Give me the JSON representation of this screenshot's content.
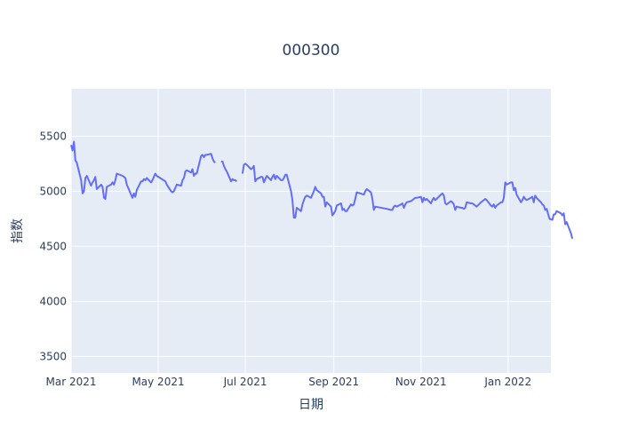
{
  "chart_data": {
    "type": "line",
    "title": "000300",
    "xlabel": "日期",
    "ylabel": "指数",
    "xlim": [
      "2021-03-01",
      "2022-01-31"
    ],
    "ylim": [
      3350,
      5930
    ],
    "x_ticks": [
      {
        "date": "2021-03-01",
        "label": "Mar 2021"
      },
      {
        "date": "2021-05-01",
        "label": "May 2021"
      },
      {
        "date": "2021-07-01",
        "label": "Jul 2021"
      },
      {
        "date": "2021-09-01",
        "label": "Sep 2021"
      },
      {
        "date": "2021-11-01",
        "label": "Nov 2021"
      },
      {
        "date": "2022-01-01",
        "label": "Jan 2022"
      }
    ],
    "y_ticks": [
      3500,
      4000,
      4500,
      5000,
      5500
    ],
    "grid": true,
    "line_color": "#636efa",
    "plot_background": "#e5ecf6",
    "series": [
      {
        "segments": [
          [
            [
              "2021-03-01",
              5420
            ],
            [
              "2021-03-02",
              5370
            ],
            [
              "2021-03-03",
              5450
            ],
            [
              "2021-03-04",
              5280
            ],
            [
              "2021-03-05",
              5260
            ],
            [
              "2021-03-08",
              5100
            ],
            [
              "2021-03-09",
              4980
            ],
            [
              "2021-03-10",
              5000
            ],
            [
              "2021-03-11",
              5120
            ],
            [
              "2021-03-12",
              5140
            ],
            [
              "2021-03-15",
              5050
            ],
            [
              "2021-03-16",
              5080
            ],
            [
              "2021-03-17",
              5100
            ],
            [
              "2021-03-18",
              5130
            ],
            [
              "2021-03-19",
              5020
            ],
            [
              "2021-03-22",
              5060
            ],
            [
              "2021-03-23",
              5040
            ],
            [
              "2021-03-24",
              4940
            ],
            [
              "2021-03-25",
              4930
            ],
            [
              "2021-03-26",
              5040
            ],
            [
              "2021-03-29",
              5060
            ],
            [
              "2021-03-30",
              5080
            ],
            [
              "2021-03-31",
              5060
            ],
            [
              "2021-04-01",
              5100
            ],
            [
              "2021-04-02",
              5160
            ],
            [
              "2021-04-06",
              5140
            ],
            [
              "2021-04-07",
              5130
            ],
            [
              "2021-04-08",
              5120
            ],
            [
              "2021-04-09",
              5060
            ],
            [
              "2021-04-12",
              4970
            ],
            [
              "2021-04-13",
              4940
            ],
            [
              "2021-04-14",
              4980
            ],
            [
              "2021-04-15",
              4950
            ],
            [
              "2021-04-16",
              5010
            ],
            [
              "2021-04-19",
              5090
            ],
            [
              "2021-04-20",
              5090
            ],
            [
              "2021-04-21",
              5110
            ],
            [
              "2021-04-22",
              5100
            ],
            [
              "2021-04-23",
              5120
            ],
            [
              "2021-04-26",
              5080
            ],
            [
              "2021-04-27",
              5100
            ],
            [
              "2021-04-28",
              5130
            ],
            [
              "2021-04-29",
              5160
            ],
            [
              "2021-04-30",
              5140
            ],
            [
              "2021-05-06",
              5090
            ],
            [
              "2021-05-07",
              5060
            ],
            [
              "2021-05-10",
              5000
            ],
            [
              "2021-05-11",
              4990
            ],
            [
              "2021-05-12",
              5000
            ],
            [
              "2021-05-13",
              5030
            ],
            [
              "2021-05-14",
              5060
            ],
            [
              "2021-05-17",
              5050
            ],
            [
              "2021-05-18",
              5100
            ],
            [
              "2021-05-19",
              5120
            ],
            [
              "2021-05-20",
              5180
            ],
            [
              "2021-05-21",
              5190
            ],
            [
              "2021-05-24",
              5170
            ],
            [
              "2021-05-25",
              5200
            ],
            [
              "2021-05-26",
              5140
            ],
            [
              "2021-05-27",
              5160
            ],
            [
              "2021-05-28",
              5160
            ],
            [
              "2021-05-31",
              5320
            ],
            [
              "2021-06-01",
              5330
            ],
            [
              "2021-06-02",
              5310
            ],
            [
              "2021-06-03",
              5330
            ],
            [
              "2021-06-04",
              5330
            ],
            [
              "2021-06-07",
              5340
            ],
            [
              "2021-06-08",
              5300
            ],
            [
              "2021-06-09",
              5270
            ],
            [
              "2021-06-10",
              5260
            ]
          ],
          [
            [
              "2021-06-14",
              5270
            ],
            [
              "2021-06-15",
              5270
            ],
            [
              "2021-06-16",
              5230
            ],
            [
              "2021-06-17",
              5200
            ],
            [
              "2021-06-18",
              5180
            ],
            [
              "2021-06-21",
              5090
            ],
            [
              "2021-06-22",
              5110
            ],
            [
              "2021-06-23",
              5100
            ],
            [
              "2021-06-24",
              5100
            ],
            [
              "2021-06-25",
              5090
            ]
          ],
          [
            [
              "2021-06-29",
              5160
            ],
            [
              "2021-06-30",
              5240
            ],
            [
              "2021-07-01",
              5250
            ],
            [
              "2021-07-02",
              5240
            ],
            [
              "2021-07-05",
              5200
            ],
            [
              "2021-07-06",
              5210
            ],
            [
              "2021-07-07",
              5230
            ],
            [
              "2021-07-08",
              5090
            ],
            [
              "2021-07-09",
              5110
            ],
            [
              "2021-07-12",
              5130
            ],
            [
              "2021-07-13",
              5130
            ],
            [
              "2021-07-14",
              5080
            ],
            [
              "2021-07-15",
              5110
            ],
            [
              "2021-07-16",
              5140
            ],
            [
              "2021-07-19",
              5100
            ],
            [
              "2021-07-20",
              5130
            ],
            [
              "2021-07-21",
              5150
            ],
            [
              "2021-07-22",
              5110
            ],
            [
              "2021-07-23",
              5140
            ],
            [
              "2021-07-26",
              5100
            ],
            [
              "2021-07-27",
              5100
            ],
            [
              "2021-07-28",
              5120
            ],
            [
              "2021-07-29",
              5150
            ],
            [
              "2021-07-30",
              5150
            ],
            [
              "2021-08-02",
              5000
            ],
            [
              "2021-08-03",
              4920
            ],
            [
              "2021-08-04",
              4760
            ],
            [
              "2021-08-05",
              4760
            ],
            [
              "2021-08-06",
              4850
            ],
            [
              "2021-08-09",
              4820
            ],
            [
              "2021-08-10",
              4880
            ],
            [
              "2021-08-11",
              4920
            ],
            [
              "2021-08-12",
              4950
            ],
            [
              "2021-08-13",
              4960
            ],
            [
              "2021-08-16",
              4940
            ],
            [
              "2021-08-17",
              4970
            ],
            [
              "2021-08-18",
              5000
            ],
            [
              "2021-08-19",
              5040
            ],
            [
              "2021-08-20",
              5010
            ],
            [
              "2021-08-23",
              4980
            ],
            [
              "2021-08-24",
              4950
            ],
            [
              "2021-08-25",
              4950
            ],
            [
              "2021-08-26",
              4860
            ],
            [
              "2021-08-27",
              4900
            ],
            [
              "2021-08-30",
              4860
            ],
            [
              "2021-08-31",
              4780
            ],
            [
              "2021-09-01",
              4800
            ],
            [
              "2021-09-02",
              4820
            ],
            [
              "2021-09-03",
              4870
            ],
            [
              "2021-09-06",
              4890
            ],
            [
              "2021-09-07",
              4830
            ],
            [
              "2021-09-08",
              4840
            ],
            [
              "2021-09-09",
              4820
            ],
            [
              "2021-09-10",
              4820
            ],
            [
              "2021-09-13",
              4880
            ],
            [
              "2021-09-14",
              4870
            ],
            [
              "2021-09-15",
              4880
            ],
            [
              "2021-09-16",
              4930
            ],
            [
              "2021-09-17",
              4990
            ],
            [
              "2021-09-22",
              4970
            ],
            [
              "2021-09-23",
              5000
            ],
            [
              "2021-09-24",
              5020
            ],
            [
              "2021-09-27",
              4990
            ],
            [
              "2021-09-28",
              4930
            ],
            [
              "2021-09-29",
              4830
            ],
            [
              "2021-09-30",
              4860
            ],
            [
              "2021-10-08",
              4840
            ],
            [
              "2021-10-11",
              4830
            ],
            [
              "2021-10-12",
              4830
            ],
            [
              "2021-10-13",
              4860
            ],
            [
              "2021-10-14",
              4870
            ],
            [
              "2021-10-15",
              4860
            ],
            [
              "2021-10-18",
              4880
            ],
            [
              "2021-10-19",
              4890
            ],
            [
              "2021-10-20",
              4850
            ],
            [
              "2021-10-21",
              4880
            ],
            [
              "2021-10-22",
              4900
            ],
            [
              "2021-10-25",
              4910
            ],
            [
              "2021-10-26",
              4920
            ],
            [
              "2021-10-27",
              4930
            ],
            [
              "2021-10-28",
              4940
            ],
            [
              "2021-10-29",
              4940
            ],
            [
              "2021-11-01",
              4950
            ],
            [
              "2021-11-02",
              4900
            ],
            [
              "2021-11-03",
              4940
            ],
            [
              "2021-11-04",
              4920
            ],
            [
              "2021-11-05",
              4930
            ],
            [
              "2021-11-08",
              4890
            ],
            [
              "2021-11-09",
              4920
            ],
            [
              "2021-11-10",
              4940
            ],
            [
              "2021-11-11",
              4920
            ],
            [
              "2021-11-12",
              4930
            ],
            [
              "2021-11-15",
              4970
            ],
            [
              "2021-11-16",
              4980
            ],
            [
              "2021-11-17",
              4960
            ],
            [
              "2021-11-18",
              4890
            ],
            [
              "2021-11-19",
              4880
            ],
            [
              "2021-11-22",
              4910
            ],
            [
              "2021-11-23",
              4900
            ],
            [
              "2021-11-24",
              4880
            ],
            [
              "2021-11-25",
              4830
            ],
            [
              "2021-11-26",
              4860
            ],
            [
              "2021-11-29",
              4850
            ],
            [
              "2021-11-30",
              4850
            ],
            [
              "2021-12-01",
              4840
            ],
            [
              "2021-12-02",
              4850
            ],
            [
              "2021-12-03",
              4900
            ],
            [
              "2021-12-06",
              4890
            ],
            [
              "2021-12-07",
              4890
            ],
            [
              "2021-12-08",
              4880
            ],
            [
              "2021-12-09",
              4870
            ],
            [
              "2021-12-10",
              4860
            ],
            [
              "2021-12-13",
              4900
            ],
            [
              "2021-12-14",
              4910
            ],
            [
              "2021-12-15",
              4920
            ],
            [
              "2021-12-16",
              4930
            ],
            [
              "2021-12-17",
              4920
            ],
            [
              "2021-12-20",
              4870
            ],
            [
              "2021-12-21",
              4860
            ],
            [
              "2021-12-22",
              4880
            ],
            [
              "2021-12-23",
              4850
            ],
            [
              "2021-12-24",
              4870
            ],
            [
              "2021-12-27",
              4900
            ],
            [
              "2021-12-28",
              4900
            ],
            [
              "2021-12-29",
              4940
            ],
            [
              "2021-12-30",
              5080
            ],
            [
              "2021-12-31",
              5060
            ],
            [
              "2022-01-03",
              5080
            ],
            [
              "2022-01-04",
              5080
            ],
            [
              "2022-01-05",
              5010
            ],
            [
              "2022-01-06",
              5030
            ],
            [
              "2022-01-07",
              4970
            ],
            [
              "2022-01-10",
              4900
            ],
            [
              "2022-01-11",
              4920
            ],
            [
              "2022-01-12",
              4950
            ],
            [
              "2022-01-13",
              4930
            ],
            [
              "2022-01-14",
              4920
            ],
            [
              "2022-01-17",
              4940
            ],
            [
              "2022-01-18",
              4950
            ],
            [
              "2022-01-19",
              4900
            ],
            [
              "2022-01-20",
              4960
            ],
            [
              "2022-01-21",
              4940
            ],
            [
              "2022-01-24",
              4900
            ],
            [
              "2022-01-25",
              4880
            ],
            [
              "2022-01-26",
              4870
            ],
            [
              "2022-01-27",
              4830
            ],
            [
              "2022-01-28",
              4840
            ],
            [
              "2022-01-30",
              4750
            ],
            [
              "2022-02-01",
              4740
            ],
            [
              "2022-02-02",
              4790
            ],
            [
              "2022-02-03",
              4790
            ],
            [
              "2022-02-04",
              4820
            ],
            [
              "2022-02-07",
              4800
            ],
            [
              "2022-02-08",
              4780
            ],
            [
              "2022-02-09",
              4800
            ],
            [
              "2022-02-10",
              4700
            ],
            [
              "2022-02-11",
              4720
            ],
            [
              "2022-02-14",
              4620
            ],
            [
              "2022-02-15",
              4570
            ]
          ]
        ]
      }
    ]
  }
}
